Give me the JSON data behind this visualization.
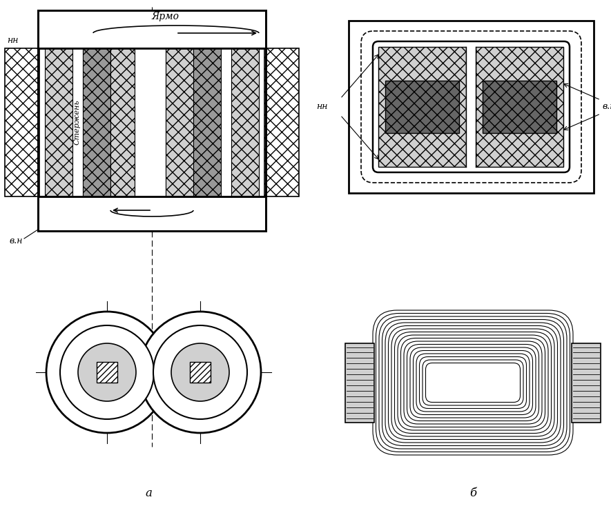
{
  "bg_color": "#ffffff",
  "line_color": "#000000",
  "label_a": "а",
  "label_b": "б",
  "text_yarmo": "Ярмо",
  "text_sterzhen": "Стержень",
  "text_nn": "нн",
  "text_vn": "в.н",
  "fig_width": 8.85,
  "fig_height": 7.34
}
